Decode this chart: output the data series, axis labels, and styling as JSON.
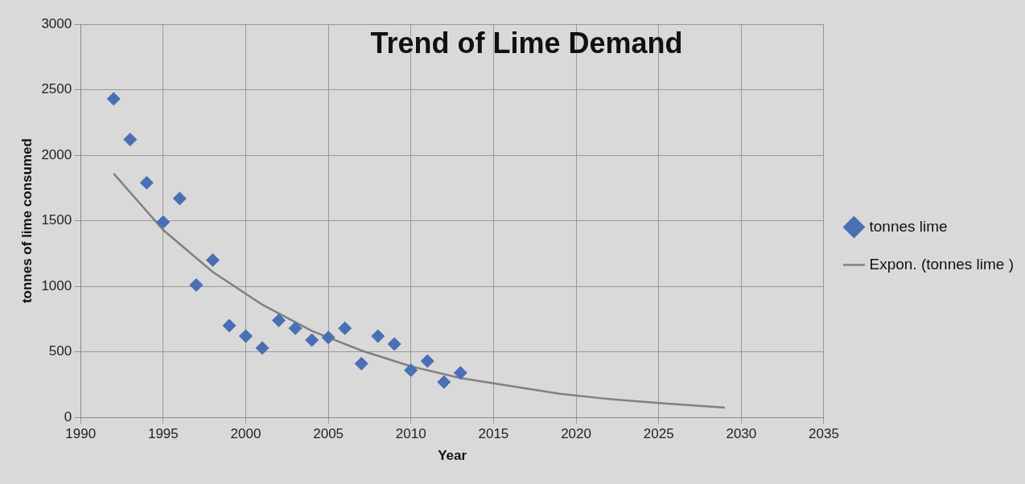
{
  "chart_data": {
    "type": "scatter",
    "title": "Trend of Lime Demand",
    "xlabel": "Year",
    "ylabel": "tonnes of lime consumed",
    "xlim": [
      1990,
      2035
    ],
    "xticks": [
      1990,
      1995,
      2000,
      2005,
      2010,
      2015,
      2020,
      2025,
      2030,
      2035
    ],
    "ylim": [
      0,
      3000
    ],
    "yticks": [
      0,
      500,
      1000,
      1500,
      2000,
      2500,
      3000
    ],
    "grid": true,
    "legend": "right",
    "series": [
      {
        "name": "tonnes lime",
        "color": "#4a6fb5",
        "marker": "diamond",
        "x": [
          1992,
          1993,
          1994,
          1995,
          1996,
          1997,
          1998,
          1999,
          2000,
          2001,
          2002,
          2003,
          2004,
          2005,
          2006,
          2007,
          2008,
          2009,
          2010,
          2011,
          2012,
          2013
        ],
        "values": [
          2430,
          2120,
          1790,
          1490,
          1670,
          1010,
          1200,
          700,
          620,
          530,
          740,
          680,
          590,
          610,
          680,
          410,
          620,
          560,
          360,
          430,
          270,
          340
        ]
      },
      {
        "name": "Expon. (tonnes lime )",
        "type": "line",
        "marker": "none",
        "color": "#808080",
        "x": [
          1992,
          1995,
          1998,
          2001,
          2004,
          2007,
          2010,
          2013,
          2016,
          2019,
          2022,
          2025,
          2029
        ],
        "values": [
          1860,
          1430,
          1110,
          860,
          660,
          510,
          390,
          300,
          240,
          180,
          140,
          110,
          75
        ]
      }
    ]
  }
}
